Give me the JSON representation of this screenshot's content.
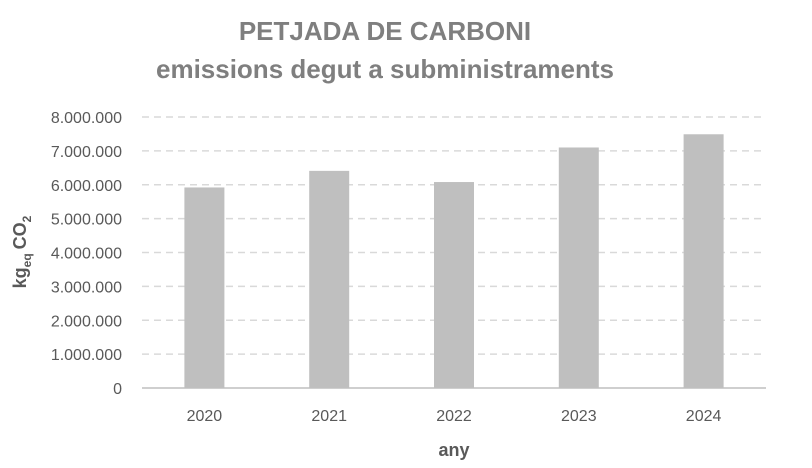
{
  "chart_data": {
    "type": "bar",
    "title": "PETJADA DE CARBONI",
    "subtitle": "emissions degut a subministraments",
    "xlabel": "any",
    "ylabel": {
      "base": "kg",
      "sub": "eq",
      "unit": "CO",
      "unit_sub": "2"
    },
    "categories": [
      "2020",
      "2021",
      "2022",
      "2023",
      "2024"
    ],
    "values": [
      5920000,
      6410000,
      6080000,
      7100000,
      7490000
    ],
    "ylim": [
      0,
      8000000
    ],
    "yticks": [
      0,
      1000000,
      2000000,
      3000000,
      4000000,
      5000000,
      6000000,
      7000000,
      8000000
    ],
    "ytick_labels": [
      "0",
      "1.000.000",
      "2.000.000",
      "3.000.000",
      "4.000.000",
      "5.000.000",
      "6.000.000",
      "7.000.000",
      "8.000.000"
    ],
    "grid": true,
    "bar_color": "#bfbfbf",
    "grid_color": "#d9d9d9",
    "axis_color": "#bfbfbf",
    "text_color": "#595959",
    "title_color": "#7f7f7f"
  }
}
